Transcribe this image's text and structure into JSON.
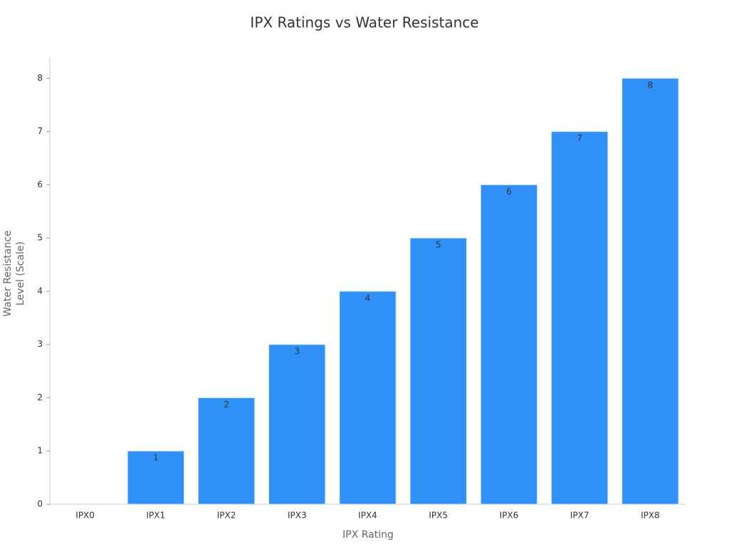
{
  "chart_data": {
    "type": "bar",
    "title": "IPX Ratings vs Water Resistance",
    "x_label": "IPX Rating",
    "y_label": "Water Resistance Level (Scale)",
    "categories": [
      "IPX0",
      "IPX1",
      "IPX2",
      "IPX3",
      "IPX4",
      "IPX5",
      "IPX6",
      "IPX7",
      "IPX8"
    ],
    "values": [
      0,
      1,
      2,
      3,
      4,
      5,
      6,
      7,
      8
    ],
    "color": "#2f91f7",
    "ylim": [
      0,
      8.4
    ],
    "yticks": [
      0,
      1,
      2,
      3,
      4,
      5,
      6,
      7,
      8
    ],
    "grid": false
  }
}
